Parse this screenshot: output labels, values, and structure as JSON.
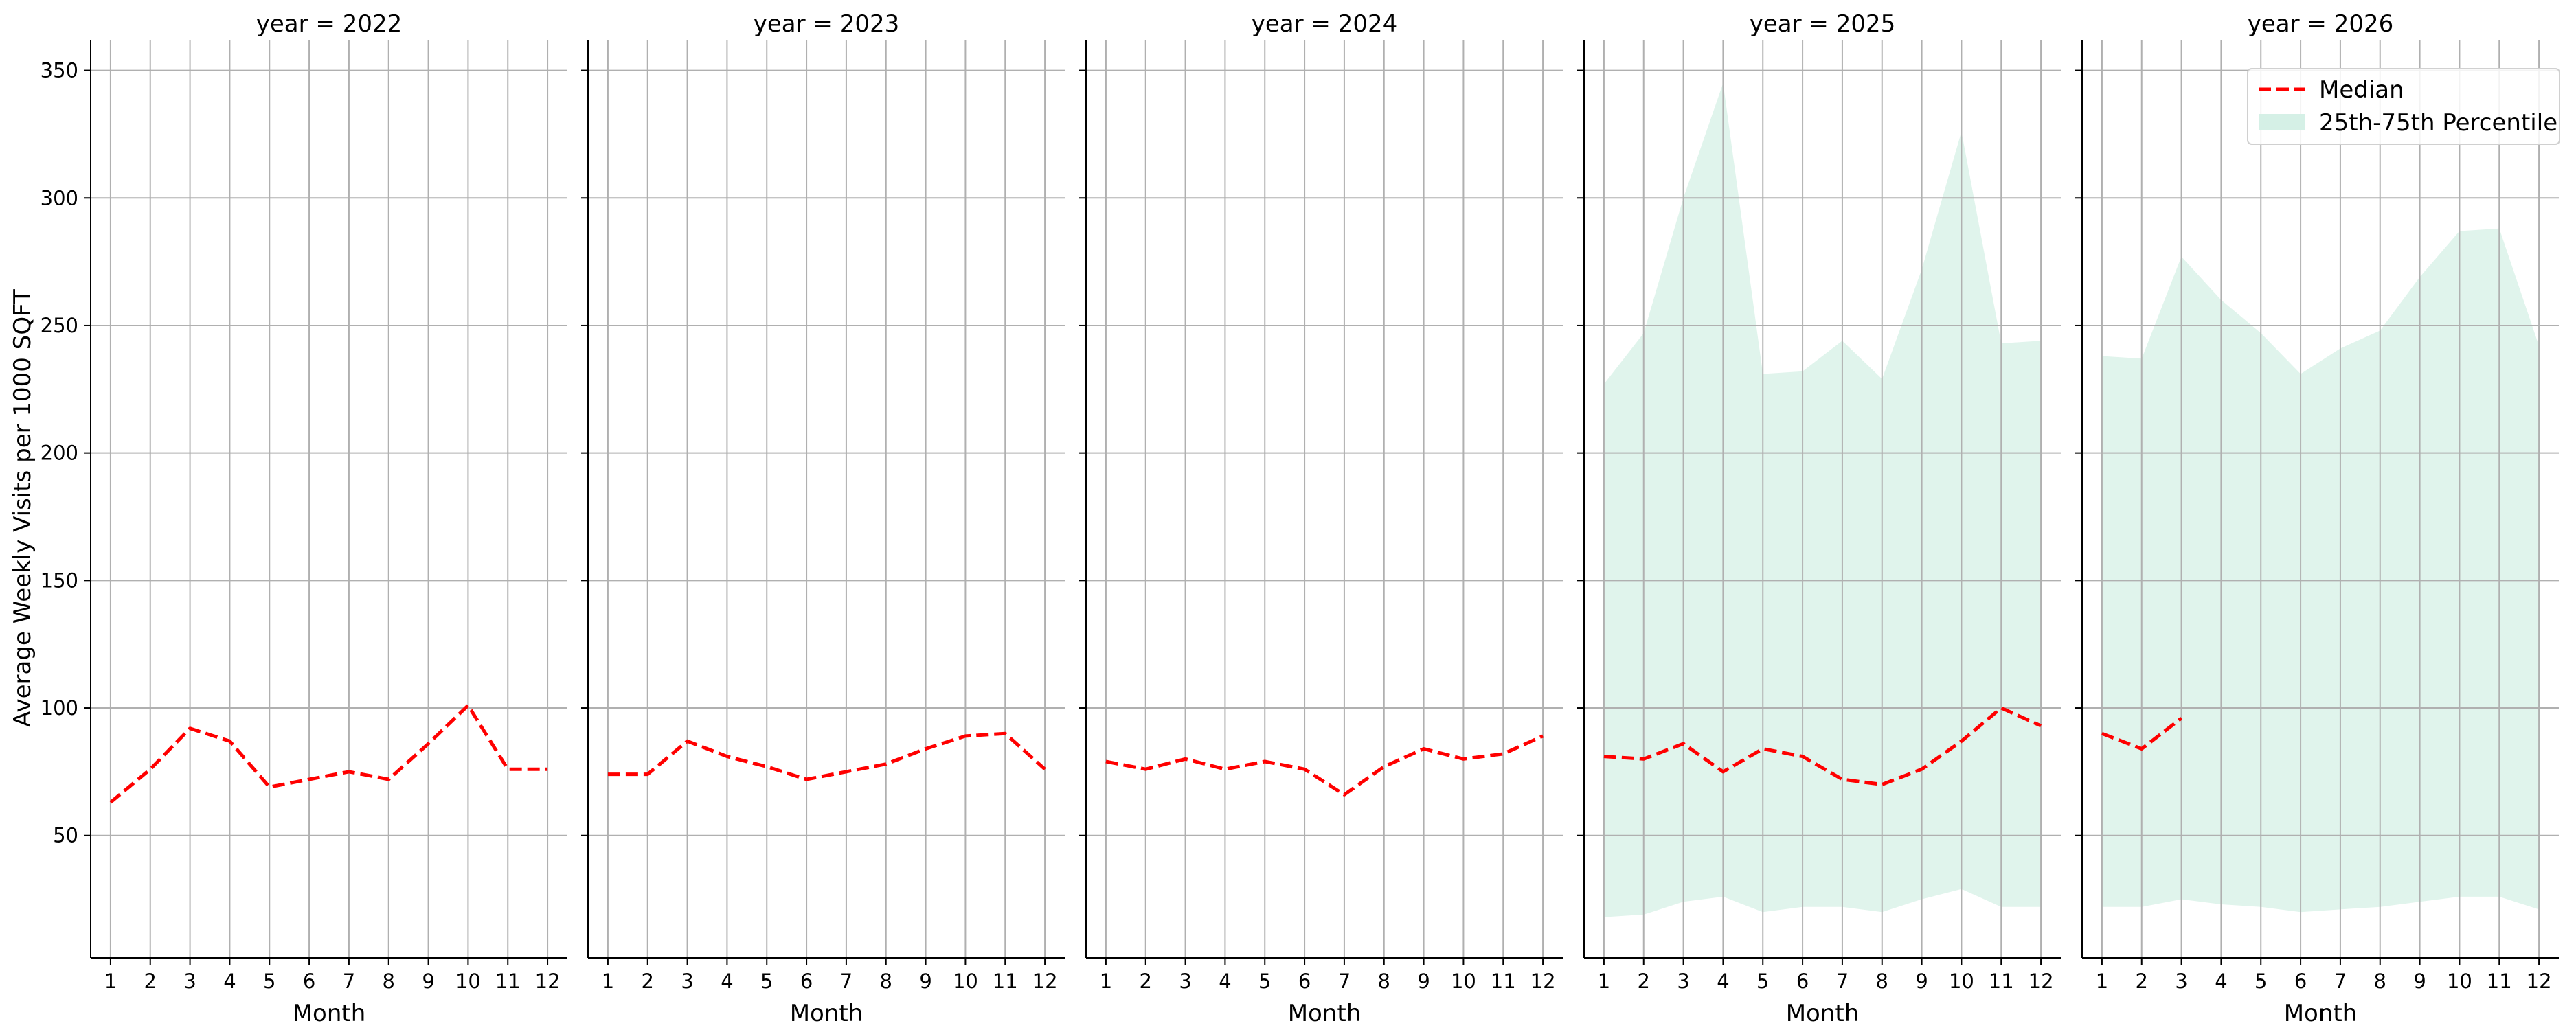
{
  "chart_data": {
    "type": "line",
    "layout": "faceted",
    "ylabel": "Average Weekly Visits per 1000 SQFT",
    "xlabel": "Month",
    "ylim": [
      2,
      362
    ],
    "xlim": [
      0.5,
      12.5
    ],
    "yticks": [
      50,
      100,
      150,
      200,
      250,
      300,
      350
    ],
    "xticks": [
      1,
      2,
      3,
      4,
      5,
      6,
      7,
      8,
      9,
      10,
      11,
      12
    ],
    "grid": true,
    "legend_position": "top-right",
    "legend": [
      {
        "label": "Median",
        "type": "dashed-line",
        "color": "#ff0000"
      },
      {
        "label": "25th-75th Percentile",
        "type": "band",
        "color": "#d5f0e6"
      }
    ],
    "colors": {
      "median": "#ff0000",
      "band": "#d5f0e6"
    },
    "panels": [
      {
        "title": "year = 2022",
        "median": {
          "x": [
            1,
            2,
            3,
            4,
            5,
            6,
            7,
            8,
            9,
            10,
            11,
            12
          ],
          "y": [
            63,
            76,
            92,
            87,
            69,
            72,
            75,
            72,
            86,
            101,
            76,
            76
          ]
        },
        "band": null
      },
      {
        "title": "year = 2023",
        "median": {
          "x": [
            1,
            2,
            3,
            4,
            5,
            6,
            7,
            8,
            9,
            10,
            11,
            12
          ],
          "y": [
            74,
            74,
            87,
            81,
            77,
            72,
            75,
            78,
            84,
            89,
            90,
            76
          ]
        },
        "band": null
      },
      {
        "title": "year = 2024",
        "median": {
          "x": [
            1,
            2,
            3,
            4,
            5,
            6,
            7,
            8,
            9,
            10,
            11,
            12
          ],
          "y": [
            79,
            76,
            80,
            76,
            79,
            76,
            66,
            77,
            84,
            80,
            82,
            89
          ]
        },
        "band": null
      },
      {
        "title": "year = 2025",
        "median": {
          "x": [
            1,
            2,
            3,
            4,
            5,
            6,
            7,
            8,
            9,
            10,
            11,
            12
          ],
          "y": [
            81,
            80,
            86,
            75,
            84,
            81,
            72,
            70,
            76,
            87,
            100,
            93
          ]
        },
        "band": {
          "x": [
            1,
            2,
            3,
            4,
            5,
            6,
            7,
            8,
            9,
            10,
            11,
            12
          ],
          "low": [
            18,
            19,
            24,
            26,
            20,
            22,
            22,
            20,
            25,
            29,
            22,
            22
          ],
          "high": [
            227,
            247,
            300,
            345,
            231,
            232,
            244,
            229,
            272,
            326,
            243,
            244
          ]
        }
      },
      {
        "title": "year = 2026",
        "median": {
          "x": [
            1,
            2,
            3
          ],
          "y": [
            90,
            84,
            96
          ]
        },
        "band": {
          "x": [
            1,
            2,
            3,
            4,
            5,
            6,
            7,
            8,
            9,
            10,
            11,
            12
          ],
          "low": [
            22,
            22,
            25,
            23,
            22,
            20,
            21,
            22,
            24,
            26,
            26,
            21
          ],
          "high": [
            238,
            237,
            277,
            260,
            247,
            231,
            241,
            248,
            269,
            287,
            288,
            242
          ]
        }
      }
    ]
  }
}
